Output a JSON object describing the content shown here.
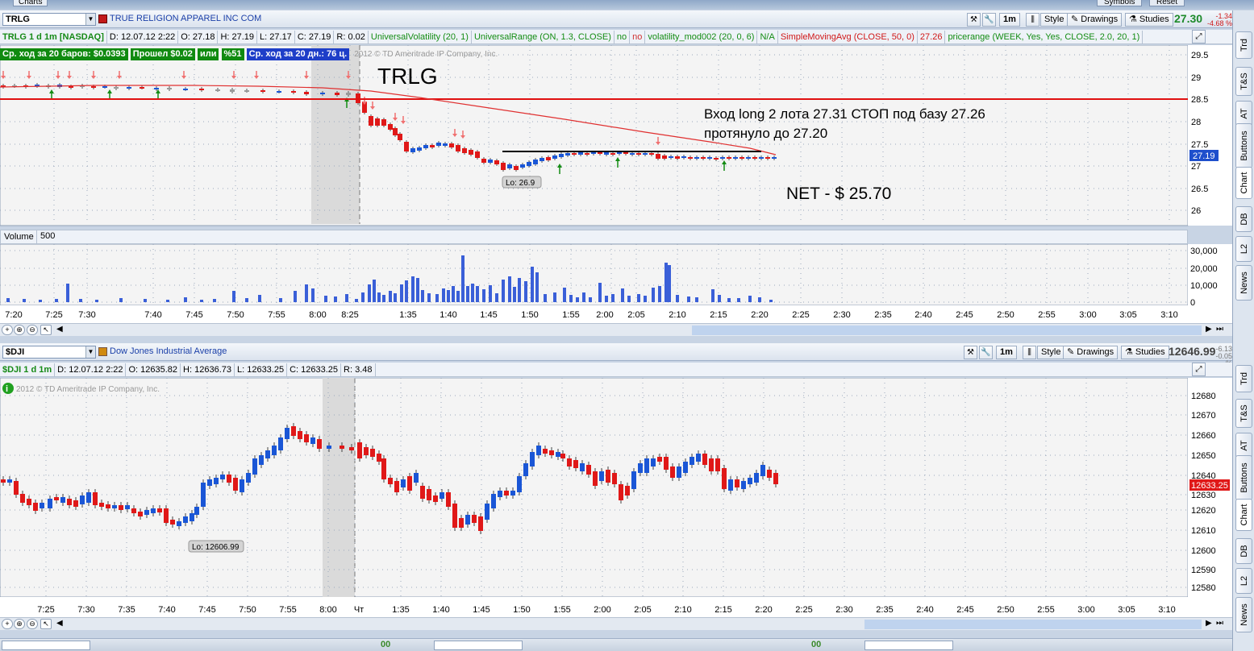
{
  "app": {
    "window_tab": "Charts",
    "top_buttons": [
      "Symbols",
      "Reset"
    ]
  },
  "top_panel": {
    "symbol": "TRLG",
    "company": "TRUE RELIGION APPAREL INC COM",
    "toolbar": {
      "period": "1m",
      "style": "Style",
      "drawings": "Drawings",
      "studies": "Studies"
    },
    "last_price": "27.30",
    "change": "-1.34",
    "change_pct": "-4.68 %",
    "info": {
      "title": "TRLG 1 d 1m [NASDAQ]",
      "date": "D: 12.07.12 2:22",
      "open": "O: 27.18",
      "high": "H: 27.19",
      "low": "L: 27.17",
      "close": "C: 27.19",
      "range": "R: 0.02",
      "studies": [
        "UniversalVolatility (20, 1)",
        "UniversalRange (ON, 1.3, CLOSE)",
        "no",
        "no",
        "volatility_mod002 (20, 0, 6)",
        "N/A",
        "SimpleMovingAvg (CLOSE, 50, 0)",
        "27.26",
        "pricerange (WEEK, Yes, Yes, CLOSE, 2.0, 20, 1)"
      ]
    },
    "badges": [
      "Ср. ход за 20 баров: $0.0393",
      "Прошел $0.02",
      "или",
      "%51",
      "Ср. ход за 20 дн.: 76 ц."
    ],
    "copyright": "2012 © TD Ameritrade IP Company, Inc.",
    "annotations": {
      "ticker_label": "TRLG",
      "entry_line1": "Вход long 2 лота 27.31 СТОП под базу 27.26",
      "entry_line2": "протянуло до 27.20",
      "net": "NET - $ 25.70",
      "low_bubble": "Lo: 26.9"
    },
    "price_axis": [
      "29.5",
      "29",
      "28.5",
      "28",
      "27.5",
      "27",
      "26.5",
      "26"
    ],
    "price_marker": "27.19",
    "volume_label": "Volume",
    "volume_value": "500",
    "volume_axis": [
      "30,000",
      "20,000",
      "10,000",
      "0"
    ],
    "time_axis": [
      "7:20",
      "7:25",
      "7:30",
      "7:40",
      "7:45",
      "7:50",
      "7:55",
      "8:00",
      "8:25",
      "1:35",
      "1:40",
      "1:45",
      "1:50",
      "1:55",
      "2:00",
      "2:05",
      "2:10",
      "2:15",
      "2:20",
      "2:25",
      "2:30",
      "2:35",
      "2:40",
      "2:45",
      "2:50",
      "2:55",
      "3:00",
      "3:05",
      "3:10"
    ]
  },
  "bottom_panel": {
    "symbol": "$DJI",
    "company": "Dow Jones Industrial Average",
    "toolbar": {
      "period": "1m",
      "style": "Style",
      "drawings": "Drawings",
      "studies": "Studies"
    },
    "last_price": "12646.99",
    "change": "-6.13",
    "change_pct": "-0.05 %",
    "info": {
      "title": "$DJI 1 d 1m",
      "date": "D: 12.07.12 2:22",
      "open": "O: 12635.82",
      "high": "H: 12636.73",
      "low": "L: 12633.25",
      "close": "C: 12633.25",
      "range": "R: 3.48"
    },
    "copyright": "2012 © TD Ameritrade IP Company, Inc.",
    "low_bubble": "Lo: 12606.99",
    "price_axis": [
      "12680",
      "12670",
      "12660",
      "12650",
      "12640",
      "12630",
      "12620",
      "12610",
      "12600",
      "12590",
      "12580"
    ],
    "price_marker": "12633.25",
    "time_axis": [
      "7:25",
      "7:30",
      "7:35",
      "7:40",
      "7:45",
      "7:50",
      "7:55",
      "8:00",
      "Чт",
      "1:35",
      "1:40",
      "1:45",
      "1:50",
      "1:55",
      "2:00",
      "2:05",
      "2:10",
      "2:15",
      "2:20",
      "2:25",
      "2:30",
      "2:35",
      "2:40",
      "2:45",
      "2:50",
      "2:55",
      "3:00",
      "3:05",
      "3:10"
    ]
  },
  "sidebar_tabs": [
    "Trd",
    "T&S",
    "AT",
    "Buttons",
    "Chart",
    "DB",
    "L2",
    "News"
  ],
  "bottom_strip": {
    "label": "00"
  },
  "colors": {
    "up": "#1a56d6",
    "down": "#e01818",
    "resistance": "#e01010",
    "sma": "#e03030",
    "volume": "#3a5fd8"
  }
}
